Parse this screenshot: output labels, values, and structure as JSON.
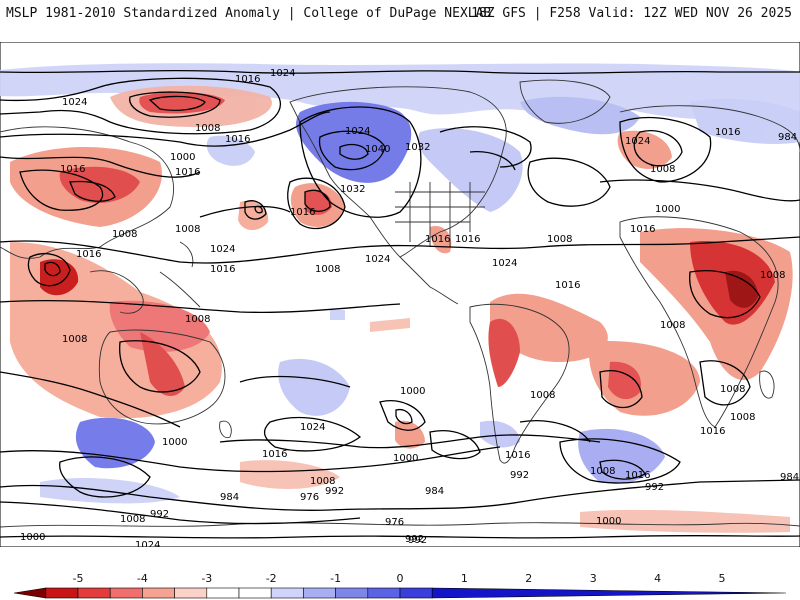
{
  "header": {
    "left": "MSLP 1981-2010 Standardized Anomaly | College of DuPage NEXLAB",
    "right": "18Z GFS | F258 Valid: 12Z WED NOV 26 2025"
  },
  "map": {
    "projection": "global equidistant cylindrical (Pacific-centered)",
    "isobar_labels": [
      "1024",
      "1016",
      "1008",
      "1000",
      "1016",
      "1024",
      "1016",
      "1016",
      "1008",
      "1008",
      "1008",
      "1016",
      "1024",
      "1016",
      "1008",
      "1024",
      "1040",
      "1032",
      "1032",
      "1016",
      "1024",
      "1016",
      "1016",
      "1008",
      "1024",
      "1016",
      "1024",
      "1008",
      "1016",
      "1000",
      "1008",
      "1016",
      "1008",
      "1008",
      "1008",
      "1008",
      "1008",
      "1016",
      "1016",
      "1024",
      "1008",
      "1000",
      "1016",
      "1008",
      "992",
      "992",
      "984",
      "976",
      "992",
      "984",
      "1008",
      "992",
      "984",
      "1000",
      "1000",
      "992",
      "1000",
      "976",
      "992",
      "984",
      "1000",
      "1000",
      "1016",
      "1008",
      "1024",
      "1016",
      "1008",
      "1000",
      "984",
      "1000"
    ],
    "colors": {
      "land_border": "#333333",
      "isobar": "#000000"
    }
  },
  "colorbar": {
    "ticks": [
      "-5",
      "-4",
      "-3",
      "-2",
      "-1",
      "0",
      "1",
      "2",
      "3",
      "4",
      "5"
    ],
    "bins": [
      "#7d0000",
      "#c81414",
      "#e23c3c",
      "#f06e6e",
      "#f7a394",
      "#fbd2c8",
      "#ffffff",
      "#ffffff",
      "#d0d4fa",
      "#a8aef2",
      "#7f86ea",
      "#5c62e4",
      "#3a3fdc",
      "#1414c8"
    ]
  }
}
